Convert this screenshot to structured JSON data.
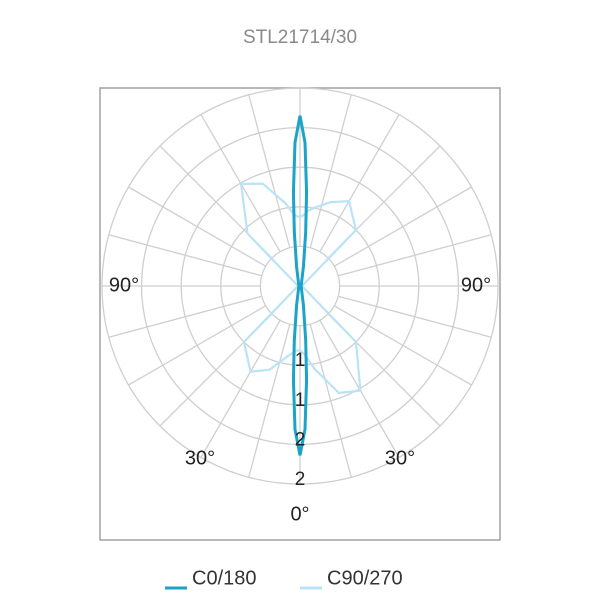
{
  "chart_data": {
    "type": "polar",
    "title": "STL21714/30",
    "angles": [
      -180,
      -178,
      -176,
      -174,
      -170,
      -160,
      -150,
      -135,
      -90,
      -45,
      -30,
      -20,
      -10,
      -6,
      -4,
      -2,
      0,
      2,
      4,
      6,
      10,
      20,
      30,
      45,
      90,
      135,
      150,
      160,
      170,
      174,
      176,
      178
    ],
    "series": [
      {
        "name": "C0/180",
        "color": "#1ca3c7",
        "values": [
          1.72,
          1.45,
          0.95,
          0.55,
          0.2,
          0.05,
          0.03,
          0.02,
          0.01,
          0.02,
          0.03,
          0.05,
          0.2,
          0.55,
          0.95,
          1.45,
          1.71,
          1.45,
          0.95,
          0.55,
          0.2,
          0.05,
          0.03,
          0.02,
          0.01,
          0.02,
          0.03,
          0.05,
          0.2,
          0.55,
          0.95,
          1.45
        ]
      },
      {
        "name": "C90/270",
        "color": "#b9e3f6",
        "values": [
          0.7,
          0.7,
          0.72,
          0.75,
          0.85,
          1.1,
          1.19,
          0.75,
          0.02,
          0.8,
          1.0,
          0.9,
          0.72,
          0.68,
          0.66,
          0.65,
          0.65,
          0.67,
          0.7,
          0.74,
          0.85,
          1.15,
          1.22,
          0.8,
          0.02,
          0.8,
          0.99,
          0.9,
          0.8,
          0.76,
          0.73,
          0.71
        ]
      }
    ],
    "rlim": [
      0,
      2
    ],
    "rgrid": [
      0.4,
      0.8,
      1.2,
      1.6,
      2.0
    ],
    "rticks": [
      {
        "value": 0.8,
        "label": "1"
      },
      {
        "value": 1.2,
        "label": "1"
      },
      {
        "value": 1.6,
        "label": "2"
      },
      {
        "value": 2.0,
        "label": "2"
      }
    ],
    "agrid": [
      0,
      15,
      30,
      45,
      60,
      75,
      90,
      105,
      120,
      135,
      150,
      165,
      180,
      195,
      210,
      225,
      240,
      255,
      270,
      285,
      300,
      315,
      330,
      345
    ],
    "aticks": [
      {
        "value": -90,
        "label": "90°"
      },
      {
        "value": 90,
        "label": "90°"
      },
      {
        "value": -30,
        "label": "30°"
      },
      {
        "value": 30,
        "label": "30°"
      },
      {
        "value": 0,
        "label": "0°"
      }
    ],
    "legend": "bottom"
  }
}
